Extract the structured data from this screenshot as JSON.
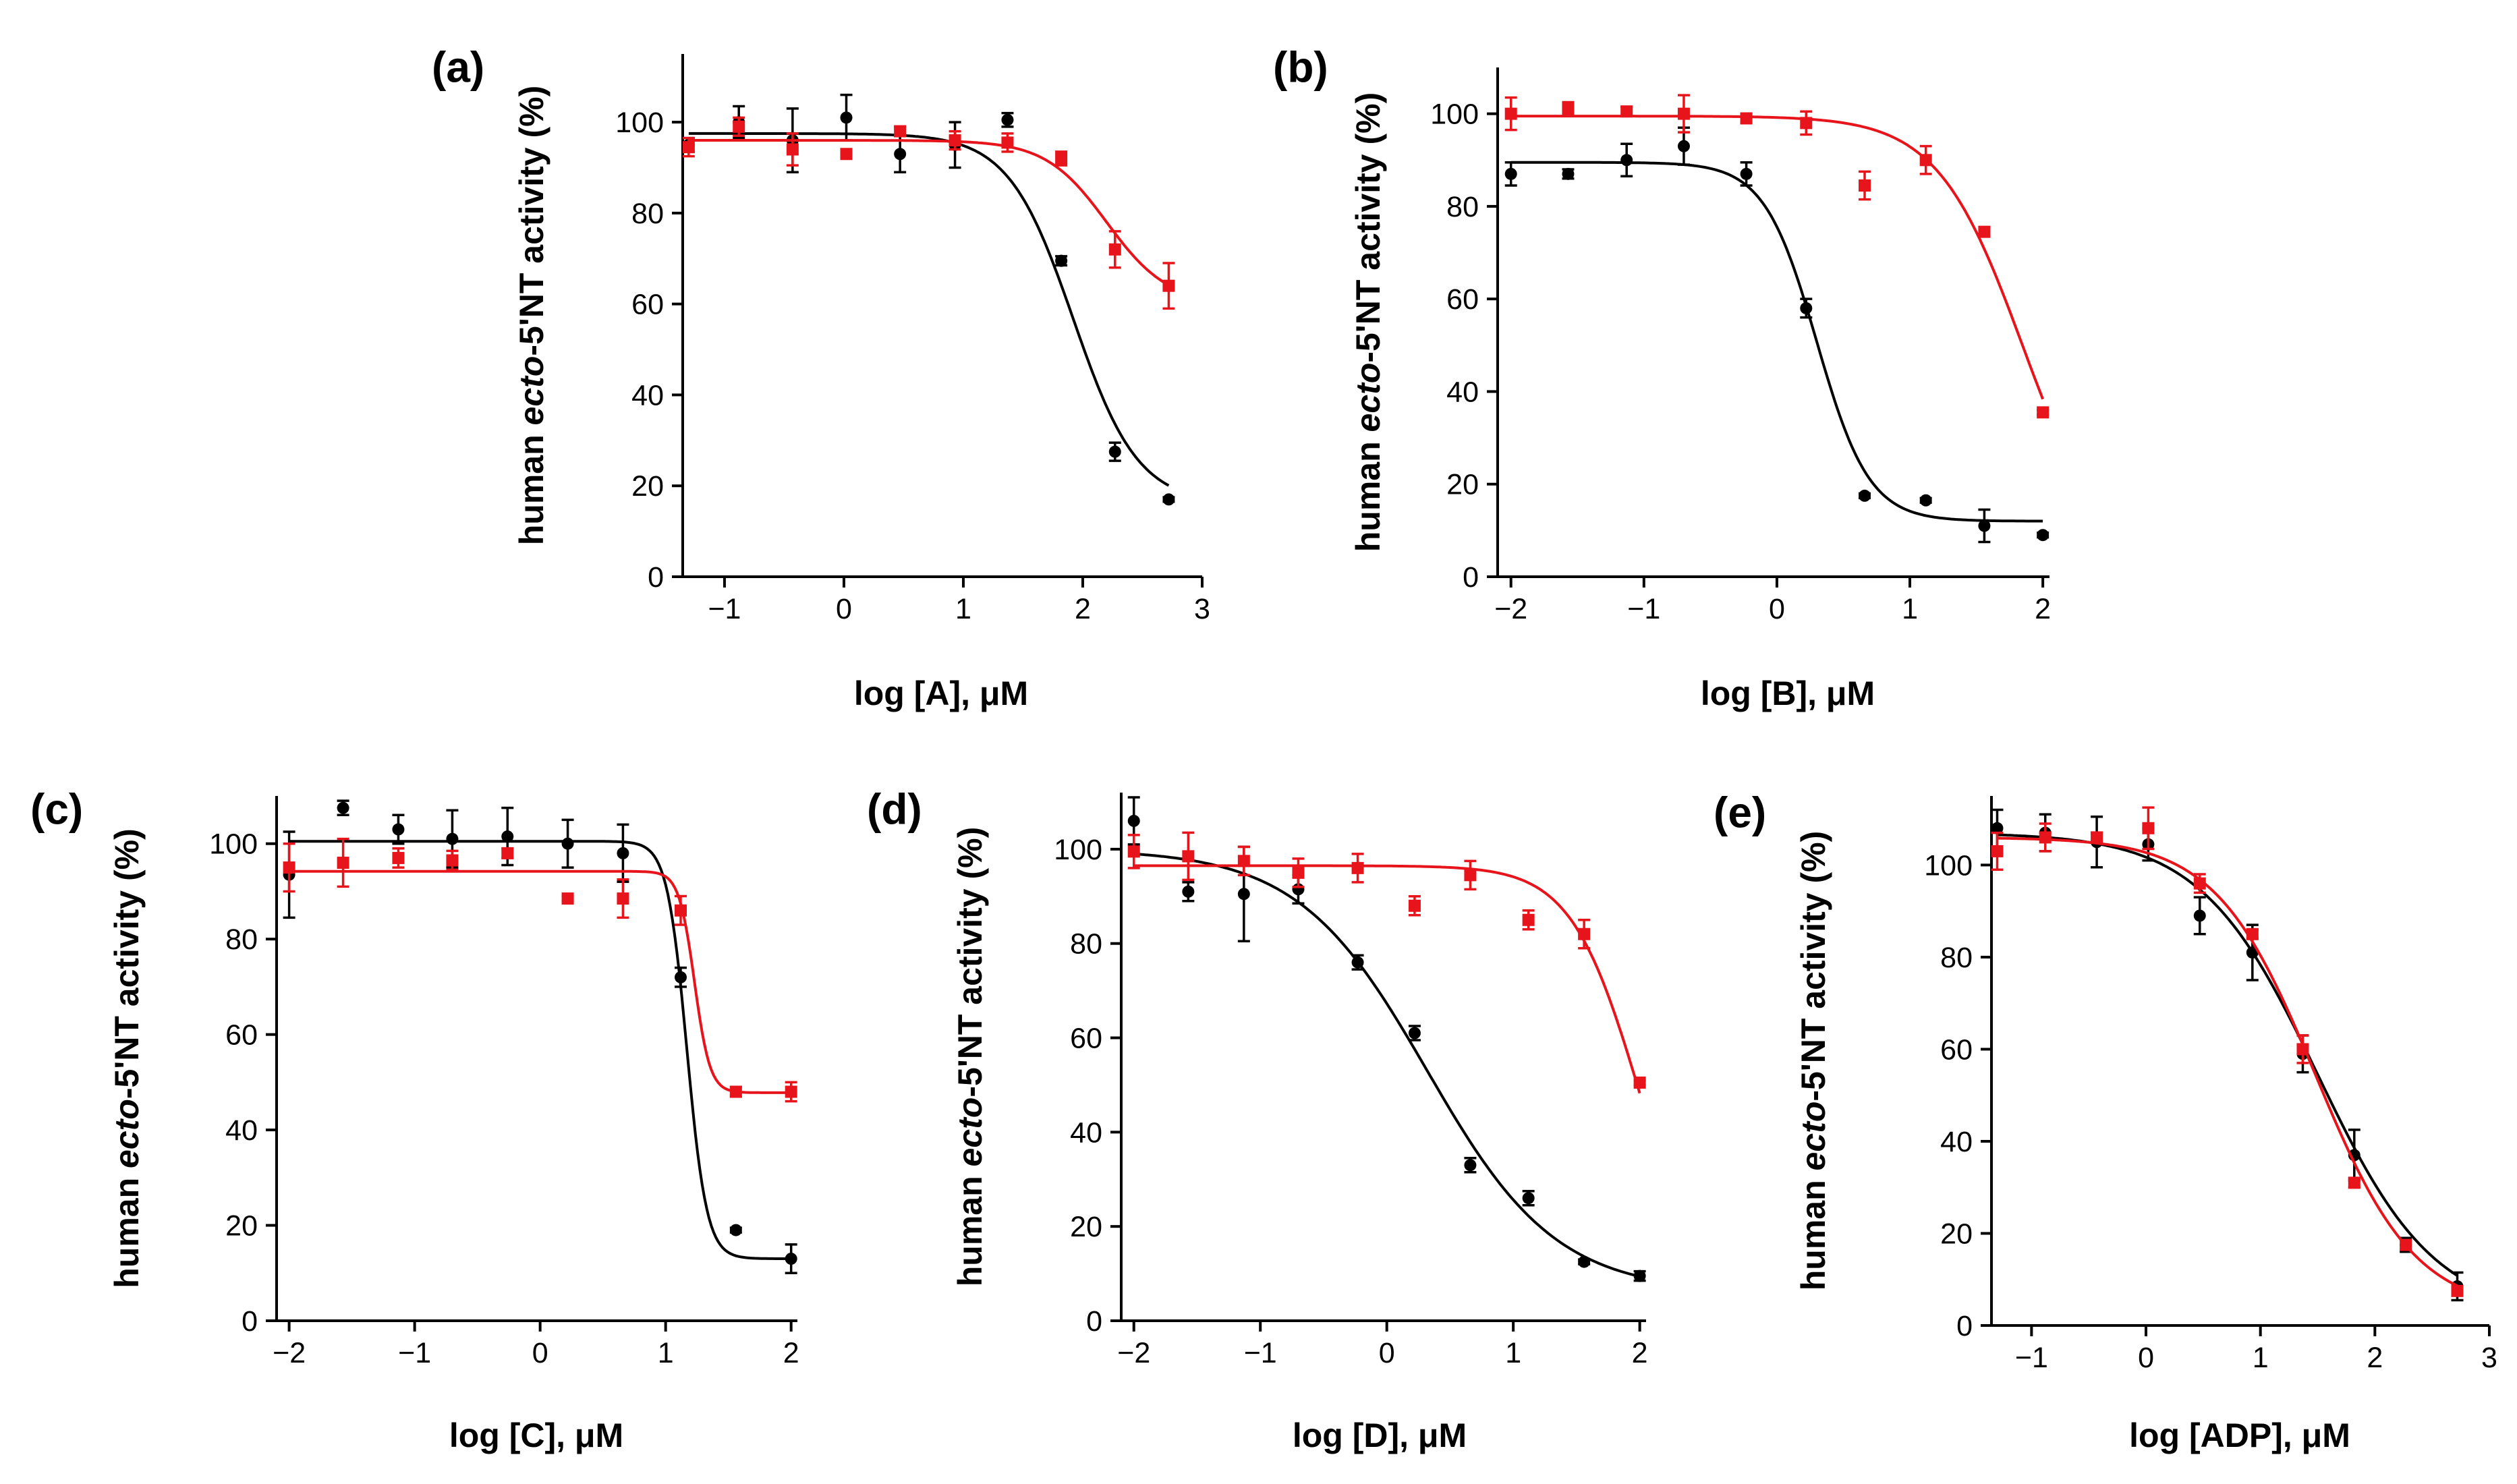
{
  "colors": {
    "black_series": "#000000",
    "red_series": "#e8141b"
  },
  "chart_data": [
    {
      "panel": "(a)",
      "type": "scatter",
      "title": "",
      "xlabel": "log [A], μM",
      "ylabel_parts": [
        "human ",
        "ecto",
        "-5'NT activity (%)"
      ],
      "xlim": [
        -1.35,
        3.0
      ],
      "ylim": [
        0,
        115
      ],
      "xticks": [
        -1,
        0,
        1,
        2,
        3
      ],
      "yticks": [
        0,
        20,
        40,
        60,
        80,
        100
      ],
      "series": [
        {
          "name": "black",
          "color": "#000000",
          "marker": "circle",
          "x": [
            -1.3,
            -0.88,
            -0.43,
            0.02,
            0.47,
            0.93,
            1.37,
            1.82,
            2.27,
            2.72
          ],
          "y": [
            95,
            100,
            96,
            101,
            93,
            95,
            100.5,
            69.5,
            27.5,
            17
          ],
          "err": [
            1.5,
            3.5,
            7,
            5,
            4,
            5,
            1.5,
            1,
            2,
            0.5
          ],
          "fit": {
            "top": 97.5,
            "bottom": 16,
            "logIC50": 1.92,
            "hill": 1.6
          }
        },
        {
          "name": "red",
          "color": "#e8141b",
          "marker": "square",
          "x": [
            -1.3,
            -0.88,
            -0.43,
            0.02,
            0.47,
            0.93,
            1.37,
            1.82,
            2.27,
            2.72
          ],
          "y": [
            94.5,
            99,
            94,
            93,
            98,
            96,
            95.5,
            92,
            72,
            64
          ],
          "err": [
            2,
            2,
            3.5,
            1,
            1,
            2,
            2,
            1.5,
            4,
            5
          ],
          "fit": {
            "top": 96,
            "bottom": 60,
            "logIC50": 2.2,
            "hill": 1.7
          }
        }
      ]
    },
    {
      "panel": "(b)",
      "type": "scatter",
      "title": "",
      "xlabel": "log [B], μM",
      "ylabel_parts": [
        "human ",
        "ecto",
        "-5'NT activity (%)"
      ],
      "xlim": [
        -2.1,
        2.05
      ],
      "ylim": [
        0,
        110
      ],
      "xticks": [
        -2,
        -1,
        0,
        1,
        2
      ],
      "yticks": [
        0,
        20,
        40,
        60,
        80,
        100
      ],
      "series": [
        {
          "name": "black",
          "color": "#000000",
          "marker": "circle",
          "x": [
            -2.0,
            -1.57,
            -1.13,
            -0.7,
            -0.23,
            0.22,
            0.66,
            1.12,
            1.56,
            2.0
          ],
          "y": [
            87,
            87,
            90,
            93,
            87,
            58,
            17.5,
            16.5,
            11,
            9
          ],
          "err": [
            2.5,
            1,
            3.5,
            4,
            2.5,
            2,
            0.5,
            0.5,
            3.5,
            0.5
          ],
          "fit": {
            "top": 89.5,
            "bottom": 12,
            "logIC50": 0.3,
            "hill": 2.2
          }
        },
        {
          "name": "red",
          "color": "#e8141b",
          "marker": "square",
          "x": [
            -2.0,
            -1.57,
            -1.13,
            -0.7,
            -0.23,
            0.22,
            0.66,
            1.12,
            1.56,
            2.0
          ],
          "y": [
            100,
            101,
            100.5,
            100,
            99,
            98,
            84.5,
            90,
            74.5,
            35.5
          ],
          "err": [
            3.5,
            1.5,
            1,
            4,
            1,
            2.5,
            3,
            3,
            1,
            0.5
          ],
          "fit": {
            "top": 99.5,
            "bottom": 0,
            "logIC50": 1.85,
            "hill": 1.35
          }
        }
      ]
    },
    {
      "panel": "(c)",
      "type": "scatter",
      "title": "",
      "xlabel": "log [C], μM",
      "ylabel_parts": [
        "human ",
        "ecto",
        "-5'NT activity (%)"
      ],
      "xlim": [
        -2.1,
        2.05
      ],
      "ylim": [
        0,
        110
      ],
      "xticks": [
        -2,
        -1,
        0,
        1,
        2
      ],
      "yticks": [
        0,
        20,
        40,
        60,
        80,
        100
      ],
      "series": [
        {
          "name": "black",
          "color": "#000000",
          "marker": "circle",
          "x": [
            -2.0,
            -1.57,
            -1.13,
            -0.7,
            -0.26,
            0.22,
            0.66,
            1.12,
            1.56,
            2.0
          ],
          "y": [
            93.5,
            107.5,
            103,
            101,
            101.5,
            100,
            98,
            72,
            19,
            13
          ],
          "err": [
            9,
            1.5,
            3,
            6,
            6,
            5,
            6,
            2,
            0.5,
            3
          ],
          "fit": {
            "top": 100.5,
            "bottom": 13,
            "logIC50": 1.17,
            "hill": 5.5
          }
        },
        {
          "name": "red",
          "color": "#e8141b",
          "marker": "square",
          "x": [
            -2.0,
            -1.57,
            -1.13,
            -0.7,
            -0.26,
            0.22,
            0.66,
            1.12,
            1.56,
            2.0
          ],
          "y": [
            95,
            96,
            97,
            96.5,
            98,
            88.5,
            88.5,
            86,
            48,
            48
          ],
          "err": [
            5,
            5,
            2,
            2,
            1,
            0.5,
            4,
            3,
            1,
            2
          ],
          "fit": {
            "top": 94.2,
            "bottom": 47.8,
            "logIC50": 1.23,
            "hill": 7
          }
        }
      ]
    },
    {
      "panel": "(d)",
      "type": "scatter",
      "title": "",
      "xlabel": "log [D], μM",
      "ylabel_parts": [
        "human ",
        "ecto",
        "-5'NT activity (%)"
      ],
      "xlim": [
        -2.1,
        2.05
      ],
      "ylim": [
        0,
        112
      ],
      "xticks": [
        -2,
        -1,
        0,
        1,
        2
      ],
      "yticks": [
        0,
        20,
        40,
        60,
        80,
        100
      ],
      "series": [
        {
          "name": "black",
          "color": "#000000",
          "marker": "circle",
          "x": [
            -2.0,
            -1.57,
            -1.13,
            -0.7,
            -0.23,
            0.22,
            0.66,
            1.12,
            1.56,
            2.0
          ],
          "y": [
            106,
            91,
            90.5,
            91.5,
            76,
            61,
            33,
            26,
            12.5,
            9.5
          ],
          "err": [
            5,
            2,
            10,
            3,
            1.5,
            1.5,
            1.5,
            1.5,
            0.5,
            1
          ],
          "fit": {
            "top": 100,
            "bottom": 6,
            "logIC50": 0.32,
            "hill": 0.85
          }
        },
        {
          "name": "red",
          "color": "#e8141b",
          "marker": "square",
          "x": [
            -2.0,
            -1.57,
            -1.13,
            -0.7,
            -0.23,
            0.22,
            0.66,
            1.12,
            1.56,
            2.0
          ],
          "y": [
            99.5,
            98.5,
            97.5,
            95,
            96,
            88,
            94.5,
            85,
            82,
            50.5
          ],
          "err": [
            3.5,
            5,
            3,
            3,
            3,
            2,
            3,
            2,
            3,
            0.5
          ],
          "fit": {
            "top": 96.5,
            "bottom": 0,
            "logIC50": 2.0,
            "hill": 1.6
          }
        }
      ]
    },
    {
      "panel": "(e)",
      "type": "scatter",
      "title": "",
      "xlabel": "log [ADP], μM",
      "ylabel_parts": [
        "human ",
        "ecto",
        "-5'NT activity (%)"
      ],
      "xlim": [
        -1.35,
        3.0
      ],
      "ylim": [
        0,
        115
      ],
      "xticks": [
        -1,
        0,
        1,
        2,
        3
      ],
      "yticks": [
        0,
        20,
        40,
        60,
        80,
        100
      ],
      "series": [
        {
          "name": "black",
          "color": "#000000",
          "marker": "circle",
          "x": [
            -1.3,
            -0.88,
            -0.43,
            0.02,
            0.47,
            0.93,
            1.37,
            1.82,
            2.27,
            2.72
          ],
          "y": [
            108,
            107,
            105,
            104.5,
            89,
            81,
            59,
            37,
            17.5,
            8.5
          ],
          "err": [
            4,
            4,
            5.5,
            3.5,
            4,
            6,
            4,
            5.5,
            1.5,
            3
          ],
          "fit": {
            "top": 107,
            "bottom": 2,
            "logIC50": 1.5,
            "hill": 0.85
          }
        },
        {
          "name": "red",
          "color": "#e8141b",
          "marker": "square",
          "x": [
            -1.3,
            -0.88,
            -0.43,
            0.02,
            0.47,
            0.93,
            1.37,
            1.82,
            2.27,
            2.72
          ],
          "y": [
            103,
            106,
            106,
            108,
            96,
            85,
            60,
            31,
            17.5,
            7.5
          ],
          "err": [
            4,
            3,
            1,
            4.5,
            2,
            1,
            3,
            1,
            1,
            1
          ],
          "fit": {
            "top": 106,
            "bottom": 3,
            "logIC50": 1.48,
            "hill": 1.0
          }
        }
      ]
    }
  ]
}
